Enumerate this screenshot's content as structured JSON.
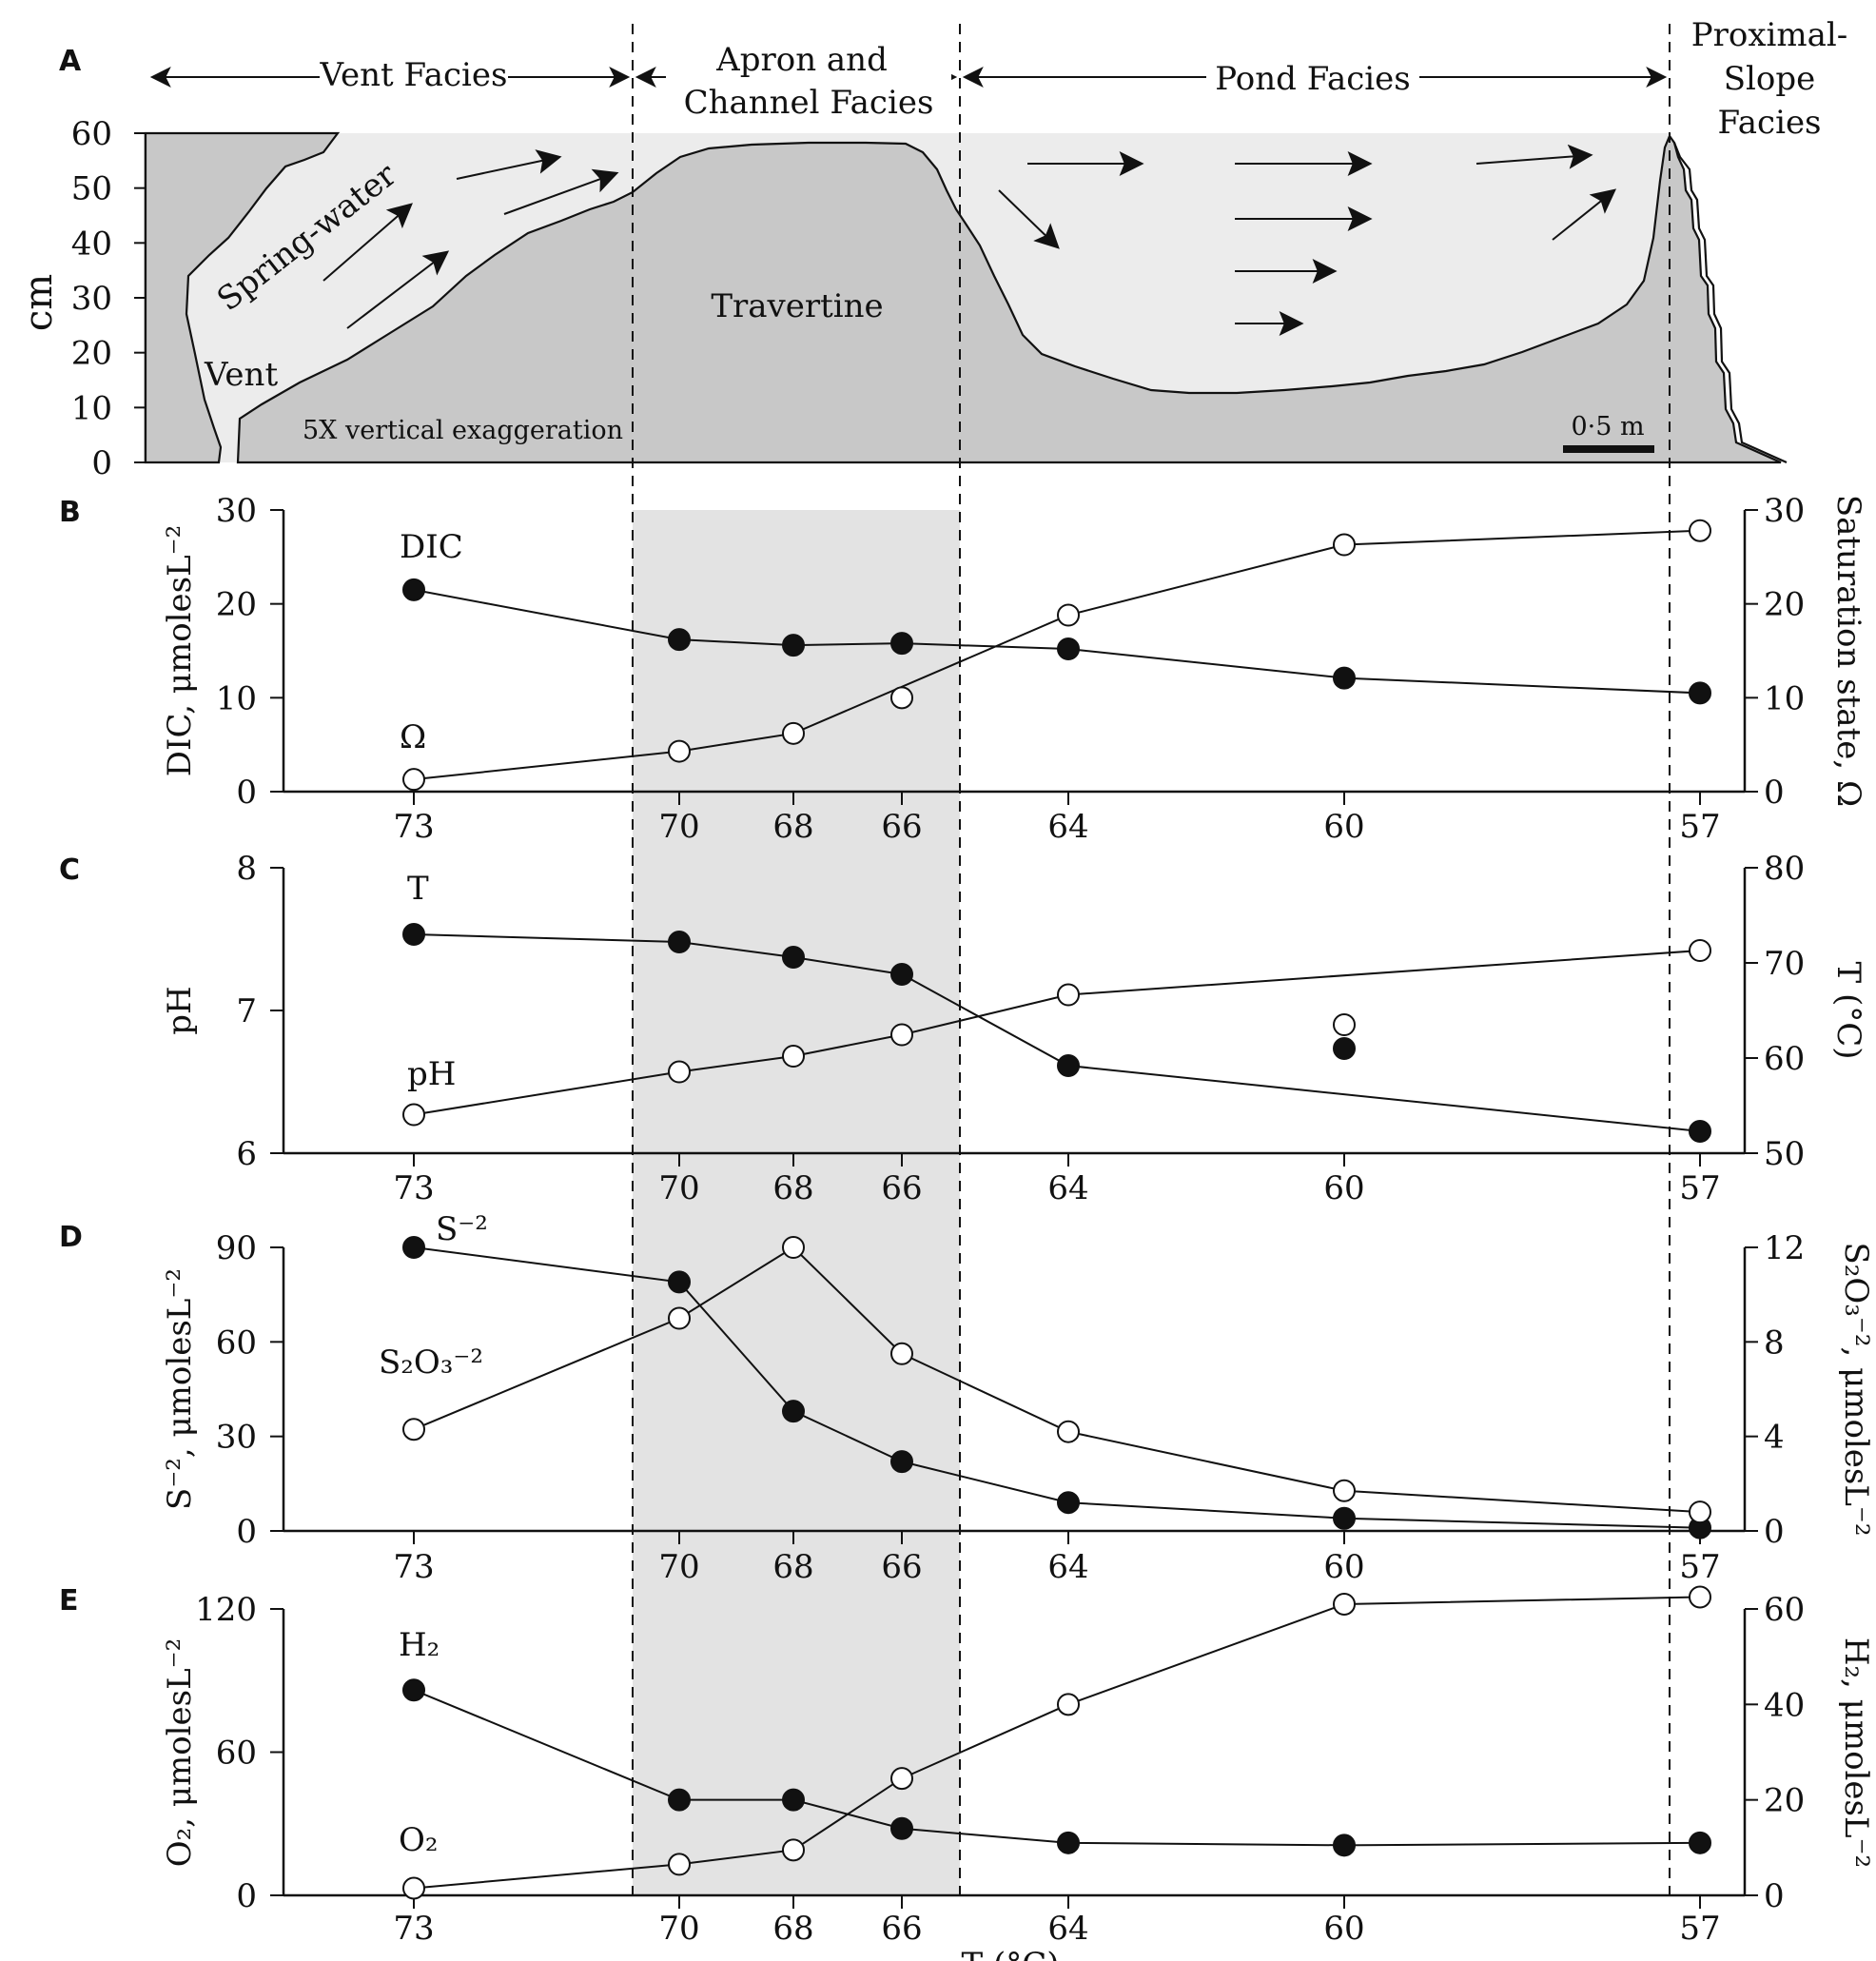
{
  "colors": {
    "travertine": "#c8c8c8",
    "water": "#ececec",
    "shade": "#e3e3e3",
    "ink": "#111111",
    "open_marker": "#ffffff"
  },
  "chart_data": [
    {
      "panel": "A",
      "type": "diagram",
      "facies": [
        "Vent Facies",
        "Apron and Channel Facies",
        "Pond Facies",
        "Proximal-Slope Facies"
      ],
      "facies_lines": {
        "apron": [
          "Apron and",
          "Channel Facies"
        ],
        "proximal": [
          "Proximal-",
          "Slope",
          "Facies"
        ]
      },
      "ylabel": "cm",
      "yticks": [
        0,
        10,
        20,
        30,
        40,
        50,
        60
      ],
      "ylim": [
        0,
        60
      ],
      "labels": {
        "spring_water": "Spring-water",
        "vent": "Vent",
        "travertine": "Travertine",
        "exaggeration": "5X vertical exaggeration",
        "scale": "0·5 m"
      }
    },
    {
      "panel": "B",
      "type": "line",
      "x": [
        "73",
        "70",
        "68",
        "66",
        "64",
        "60",
        "57"
      ],
      "ylabel_left": "DIC, μmolesL⁻²",
      "ylabel_right": "Saturation state, Ω",
      "ylim_left": [
        0,
        30
      ],
      "ylim_right": [
        0,
        30
      ],
      "yticks_left": [
        0,
        10,
        20,
        30
      ],
      "yticks_right": [
        0,
        10,
        20,
        30
      ],
      "series": [
        {
          "name": "DIC",
          "marker": "filled",
          "axis": "left",
          "values": [
            21.5,
            16.2,
            15.6,
            15.8,
            15.2,
            12.1,
            10.5
          ]
        },
        {
          "name": "Ω",
          "marker": "open",
          "axis": "right",
          "values": [
            1.3,
            4.3,
            6.2,
            10,
            18.8,
            26.3,
            27.8
          ],
          "line_to": [
            0,
            1,
            2,
            4,
            5,
            6
          ]
        }
      ]
    },
    {
      "panel": "C",
      "type": "line",
      "x": [
        "73",
        "70",
        "68",
        "66",
        "64",
        "60",
        "57"
      ],
      "ylabel_left": "pH",
      "ylabel_right": "T (°C)",
      "ylim_left": [
        6,
        8
      ],
      "ylim_right": [
        50,
        80
      ],
      "yticks_left": [
        6,
        7,
        8
      ],
      "yticks_right": [
        50,
        60,
        70,
        80
      ],
      "series": [
        {
          "name": "T",
          "marker": "filled",
          "axis": "right",
          "values": [
            73,
            72.2,
            70.6,
            68.8,
            59.2,
            61,
            52.3
          ],
          "line_to": [
            0,
            1,
            2,
            3,
            4,
            6
          ]
        },
        {
          "name": "pH",
          "marker": "open",
          "axis": "left",
          "values": [
            6.27,
            6.57,
            6.68,
            6.83,
            7.11,
            6.9,
            7.42
          ],
          "line_to": [
            0,
            1,
            2,
            3,
            4,
            6
          ]
        }
      ]
    },
    {
      "panel": "D",
      "type": "line",
      "x": [
        "73",
        "70",
        "68",
        "66",
        "64",
        "60",
        "57"
      ],
      "ylabel_left": "S⁻², μmolesL⁻²",
      "ylabel_right": "S₂O₃⁻², μmolesL⁻²",
      "ylim_left": [
        0,
        90
      ],
      "ylim_right": [
        0,
        12
      ],
      "yticks_left": [
        0,
        30,
        60,
        90
      ],
      "yticks_right": [
        0,
        4,
        8,
        12
      ],
      "series": [
        {
          "name": "S⁻²",
          "marker": "filled",
          "axis": "left",
          "values": [
            90,
            79,
            38,
            22,
            9,
            4,
            1
          ]
        },
        {
          "name": "S₂O₃⁻²",
          "marker": "open",
          "axis": "right",
          "values": [
            4.3,
            9,
            12,
            7.5,
            4.2,
            1.7,
            0.8
          ]
        }
      ]
    },
    {
      "panel": "E",
      "type": "line",
      "x": [
        "73",
        "70",
        "68",
        "66",
        "64",
        "60",
        "57"
      ],
      "xlabel": "T (°C)",
      "ylabel_left": "O₂, μmolesL⁻²",
      "ylabel_right": "H₂, μmolesL⁻²",
      "ylim_left": [
        0,
        120
      ],
      "ylim_right": [
        0,
        60
      ],
      "yticks_left": [
        0,
        60,
        120
      ],
      "yticks_right": [
        0,
        20,
        40,
        60
      ],
      "series": [
        {
          "name": "H₂",
          "marker": "filled",
          "axis": "right",
          "values": [
            43,
            20,
            20,
            14,
            11,
            10.5,
            11
          ]
        },
        {
          "name": "O₂",
          "marker": "open",
          "axis": "left",
          "values": [
            3,
            13,
            19,
            49,
            80,
            122,
            125
          ]
        }
      ]
    }
  ]
}
